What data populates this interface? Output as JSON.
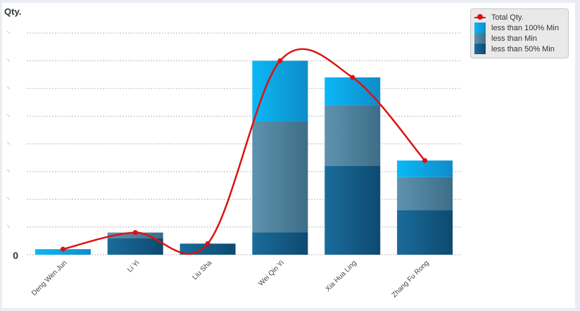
{
  "chart_data": {
    "type": "bar",
    "title": "",
    "ylabel": "Qty.",
    "xlabel": "",
    "categories": [
      "Deng Wen Jun",
      "Li Yi",
      "Liu Sha",
      "Wei Qin Yi",
      "Xia Hua Ling",
      "Zhang Fu Rong"
    ],
    "ylim": [
      0,
      8
    ],
    "yticks": [
      0
    ],
    "grid": true,
    "legend_position": "top-right",
    "series": [
      {
        "name": "less than 50% Min",
        "kind": "bar",
        "color": "#175f8a",
        "values": [
          0,
          0.6,
          0.4,
          0.8,
          3.2,
          1.6
        ]
      },
      {
        "name": "less than Min",
        "kind": "bar",
        "color": "#4a7e99",
        "values": [
          0,
          0.2,
          0,
          4.0,
          2.2,
          1.2
        ]
      },
      {
        "name": "less than 100% Min",
        "kind": "bar",
        "color": "#0aaaec",
        "values": [
          0.2,
          0,
          0,
          2.2,
          1.0,
          0.6
        ]
      },
      {
        "name": "Total Qty.",
        "kind": "line",
        "color": "#dd1111",
        "values": [
          0.2,
          0.8,
          0.4,
          7.0,
          6.4,
          3.4
        ]
      }
    ]
  },
  "legend": {
    "line_label": "Total Qty.",
    "bar1_label": "less than 100% Min",
    "bar2_label": "less than Min",
    "bar3_label": "less than 50% Min"
  }
}
